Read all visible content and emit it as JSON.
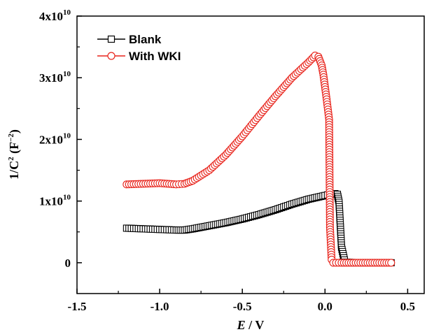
{
  "chart_data": {
    "type": "scatter",
    "xlim": [
      -1.5,
      0.6
    ],
    "ylim": [
      -5000000000.0,
      40000000000.0
    ],
    "x_ticks": [
      {
        "value": -1.5,
        "label": "-1.5"
      },
      {
        "value": -1.0,
        "label": "-1.0"
      },
      {
        "value": -0.5,
        "label": "-0.5"
      },
      {
        "value": 0.0,
        "label": "0.0"
      },
      {
        "value": 0.5,
        "label": "0.5"
      }
    ],
    "y_ticks": [
      {
        "value": 0,
        "mantissa": "0",
        "exponent": ""
      },
      {
        "value": 10000000000.0,
        "mantissa": "1x10",
        "exponent": "10"
      },
      {
        "value": 20000000000.0,
        "mantissa": "2x10",
        "exponent": "10"
      },
      {
        "value": 30000000000.0,
        "mantissa": "3x10",
        "exponent": "10"
      },
      {
        "value": 40000000000.0,
        "mantissa": "4x10",
        "exponent": "10"
      }
    ],
    "xlabel": {
      "symbol": "E",
      "unit": " / V"
    },
    "ylabel": {
      "main": "1/C",
      "power": "2",
      "unit_open": " (F",
      "unit_power": "−2",
      "unit_close": ")"
    },
    "legend_position": "top-left",
    "grid": false,
    "series": [
      {
        "name": "Blank",
        "marker": "square",
        "color": "#000000",
        "points": [
          [
            -1.2,
            5600000000.0
          ],
          [
            -1.1,
            5500000000.0
          ],
          [
            -1.0,
            5400000000.0
          ],
          [
            -0.9,
            5300000000.0
          ],
          [
            -0.85,
            5300000000.0
          ],
          [
            -0.8,
            5500000000.0
          ],
          [
            -0.7,
            6000000000.0
          ],
          [
            -0.6,
            6500000000.0
          ],
          [
            -0.5,
            7100000000.0
          ],
          [
            -0.4,
            7800000000.0
          ],
          [
            -0.3,
            8600000000.0
          ],
          [
            -0.2,
            9500000000.0
          ],
          [
            -0.1,
            10300000000.0
          ],
          [
            0.0,
            10900000000.0
          ],
          [
            0.03,
            11100000000.0
          ],
          [
            0.06,
            11200000000.0
          ],
          [
            0.075,
            11100000000.0
          ],
          [
            0.085,
            9800000000.0
          ],
          [
            0.1,
            2500000000.0
          ],
          [
            0.12,
            100000000.0
          ],
          [
            0.2,
            0.0
          ],
          [
            0.3,
            0.0
          ],
          [
            0.4,
            0.0
          ]
        ]
      },
      {
        "name": "With WKI",
        "marker": "circle",
        "color": "#e8241c",
        "points": [
          [
            -1.2,
            12700000000.0
          ],
          [
            -1.1,
            12800000000.0
          ],
          [
            -1.0,
            12900000000.0
          ],
          [
            -0.9,
            12700000000.0
          ],
          [
            -0.85,
            12800000000.0
          ],
          [
            -0.8,
            13300000000.0
          ],
          [
            -0.7,
            15000000000.0
          ],
          [
            -0.6,
            17500000000.0
          ],
          [
            -0.5,
            20500000000.0
          ],
          [
            -0.4,
            23800000000.0
          ],
          [
            -0.3,
            27000000000.0
          ],
          [
            -0.2,
            30000000000.0
          ],
          [
            -0.1,
            32500000000.0
          ],
          [
            -0.06,
            33600000000.0
          ],
          [
            -0.04,
            33400000000.0
          ],
          [
            -0.02,
            32000000000.0
          ],
          [
            -0.01,
            30500000000.0
          ],
          [
            0.0,
            28500000000.0
          ],
          [
            0.01,
            26500000000.0
          ],
          [
            0.025,
            23200000000.0
          ],
          [
            0.03,
            5800000000.0
          ],
          [
            0.04,
            500000000.0
          ],
          [
            0.05,
            0.0
          ],
          [
            0.1,
            0.0
          ],
          [
            0.2,
            0.0
          ],
          [
            0.3,
            0.0
          ],
          [
            0.4,
            0.0
          ]
        ]
      }
    ]
  }
}
